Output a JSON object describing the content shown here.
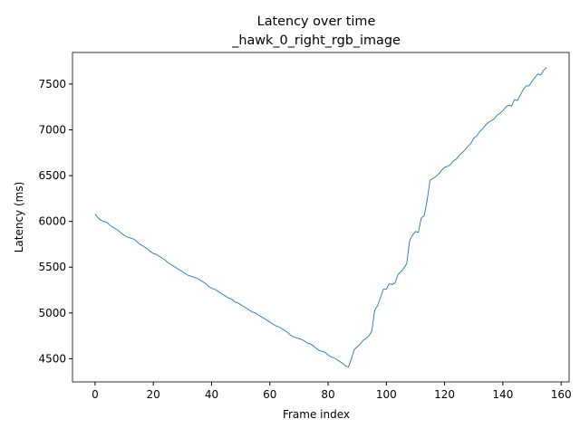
{
  "chart_data": {
    "type": "line",
    "title": "Latency over time",
    "subtitle": "_hawk_0_right_rgb_image",
    "x_label": "Frame index",
    "y_label": "Latency (ms)",
    "x": [
      0,
      1,
      2,
      3,
      4,
      5,
      6,
      7,
      8,
      9,
      10,
      11,
      12,
      13,
      14,
      15,
      16,
      17,
      18,
      19,
      20,
      21,
      22,
      23,
      24,
      25,
      26,
      27,
      28,
      29,
      30,
      31,
      32,
      33,
      34,
      35,
      36,
      37,
      38,
      39,
      40,
      41,
      42,
      43,
      44,
      45,
      46,
      47,
      48,
      49,
      50,
      51,
      52,
      53,
      54,
      55,
      56,
      57,
      58,
      59,
      60,
      61,
      62,
      63,
      64,
      65,
      66,
      67,
      68,
      69,
      70,
      71,
      72,
      73,
      74,
      75,
      76,
      77,
      78,
      79,
      80,
      81,
      82,
      83,
      84,
      85,
      86,
      87,
      88,
      89,
      90,
      91,
      92,
      93,
      94,
      95,
      96,
      97,
      98,
      99,
      100,
      101,
      102,
      103,
      104,
      105,
      106,
      107,
      108,
      109,
      110,
      111,
      112,
      113,
      114,
      115,
      116,
      117,
      118,
      119,
      120,
      121,
      122,
      123,
      124,
      125,
      126,
      127,
      128,
      129,
      130,
      131,
      132,
      133,
      134,
      135,
      136,
      137,
      138,
      139,
      140,
      141,
      142,
      143,
      144,
      145,
      146,
      147,
      148,
      149,
      150,
      151,
      152,
      153,
      154,
      155
    ],
    "series": [
      {
        "color": "#1f77b4",
        "values": [
          6080,
          6040,
          6010,
          6000,
          5990,
          5960,
          5940,
          5920,
          5900,
          5870,
          5850,
          5830,
          5820,
          5810,
          5790,
          5760,
          5740,
          5720,
          5700,
          5670,
          5650,
          5640,
          5620,
          5600,
          5580,
          5550,
          5530,
          5510,
          5490,
          5470,
          5450,
          5430,
          5410,
          5400,
          5390,
          5380,
          5360,
          5340,
          5320,
          5290,
          5270,
          5260,
          5240,
          5220,
          5200,
          5180,
          5160,
          5150,
          5120,
          5110,
          5090,
          5070,
          5050,
          5030,
          5010,
          5000,
          4980,
          4960,
          4940,
          4920,
          4900,
          4880,
          4860,
          4850,
          4830,
          4810,
          4790,
          4760,
          4740,
          4730,
          4720,
          4710,
          4690,
          4670,
          4660,
          4640,
          4610,
          4590,
          4580,
          4570,
          4540,
          4520,
          4510,
          4490,
          4470,
          4450,
          4420,
          4410,
          4500,
          4600,
          4630,
          4660,
          4700,
          4720,
          4750,
          4800,
          5030,
          5080,
          5170,
          5260,
          5260,
          5320,
          5310,
          5330,
          5420,
          5450,
          5490,
          5540,
          5790,
          5850,
          5890,
          5880,
          6040,
          6060,
          6230,
          6450,
          6470,
          6490,
          6520,
          6560,
          6590,
          6600,
          6620,
          6660,
          6680,
          6720,
          6750,
          6780,
          6820,
          6850,
          6910,
          6930,
          6980,
          7010,
          7050,
          7080,
          7100,
          7120,
          7160,
          7180,
          7210,
          7250,
          7270,
          7260,
          7330,
          7320,
          7380,
          7440,
          7480,
          7480,
          7530,
          7570,
          7610,
          7600,
          7650,
          7680
        ]
      }
    ],
    "xlim": [
      -7.75,
      162.75
    ],
    "xticks": [
      0,
      20,
      40,
      60,
      80,
      100,
      120,
      140,
      160
    ],
    "ylim": [
      4247,
      7845
    ],
    "yticks": [
      4500,
      5000,
      5500,
      6000,
      6500,
      7000,
      7500
    ]
  }
}
